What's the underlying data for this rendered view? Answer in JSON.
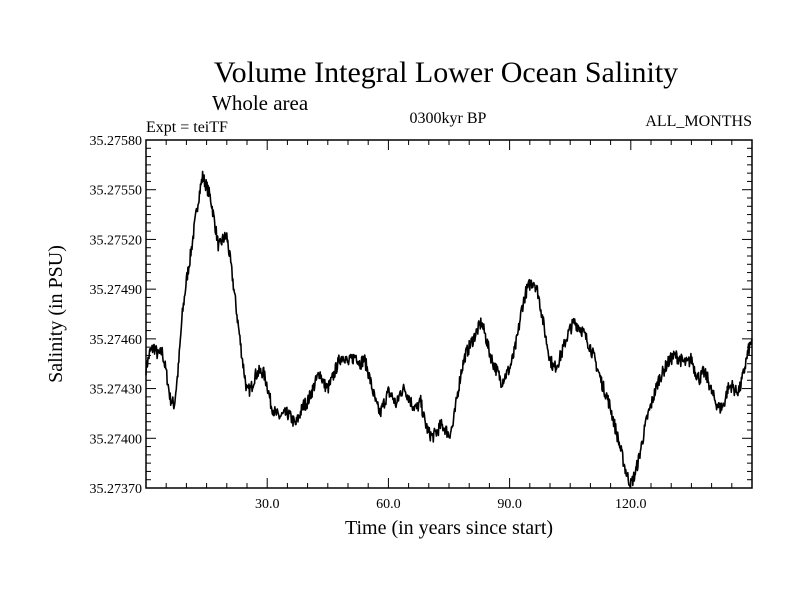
{
  "chart_data": {
    "type": "line",
    "title": "Volume Integral Lower Ocean Salinity",
    "subtitle": "Whole area",
    "experiment": "Expt = teiTF",
    "period": "0300kyr BP",
    "months": "ALL_MONTHS",
    "xlabel": "Time (in years since start)",
    "ylabel": "Salinity (in PSU)",
    "xlim": [
      0,
      150
    ],
    "ylim": [
      35.2737,
      35.2758
    ],
    "xticks": [
      30,
      60,
      90,
      120
    ],
    "xtick_labels": [
      "30.0",
      "60.0",
      "90.0",
      "120.0"
    ],
    "yticks": [
      35.2737,
      35.274,
      35.2743,
      35.2746,
      35.2749,
      35.2752,
      35.2755,
      35.2758
    ],
    "ytick_labels": [
      "35.27370",
      "35.27400",
      "35.27430",
      "35.27460",
      "35.27490",
      "35.27520",
      "35.27550",
      "35.27580"
    ],
    "grid": false,
    "series": [
      {
        "name": "salinity",
        "x": [
          0,
          1,
          2,
          3,
          4,
          5,
          6,
          7,
          8,
          9,
          10,
          11,
          12,
          13,
          14,
          15,
          16,
          17,
          18,
          19,
          20,
          21,
          22,
          23,
          24,
          25,
          26,
          27,
          28,
          29,
          30,
          31,
          32,
          33,
          34,
          35,
          36,
          37,
          38,
          39,
          40,
          41,
          42,
          43,
          44,
          45,
          46,
          47,
          48,
          49,
          50,
          51,
          52,
          53,
          54,
          55,
          56,
          57,
          58,
          59,
          60,
          61,
          62,
          63,
          64,
          65,
          66,
          67,
          68,
          69,
          70,
          71,
          72,
          73,
          74,
          75,
          76,
          77,
          78,
          79,
          80,
          81,
          82,
          83,
          84,
          85,
          86,
          87,
          88,
          89,
          90,
          91,
          92,
          93,
          94,
          95,
          96,
          97,
          98,
          99,
          100,
          101,
          102,
          103,
          104,
          105,
          106,
          107,
          108,
          109,
          110,
          111,
          112,
          113,
          114,
          115,
          116,
          117,
          118,
          119,
          120,
          121,
          122,
          123,
          124,
          125,
          126,
          127,
          128,
          129,
          130,
          131,
          132,
          133,
          134,
          135,
          136,
          137,
          138,
          139,
          140,
          141,
          142,
          143,
          144,
          145,
          146,
          147,
          148,
          149,
          150
        ],
        "values": [
          35.27442,
          35.27452,
          35.27455,
          35.2745,
          35.27452,
          35.2744,
          35.27424,
          35.2742,
          35.27442,
          35.27475,
          35.27495,
          35.2751,
          35.27528,
          35.27545,
          35.27558,
          35.27552,
          35.27545,
          35.2753,
          35.27515,
          35.2752,
          35.27522,
          35.27505,
          35.27485,
          35.27465,
          35.27445,
          35.27428,
          35.2743,
          35.27438,
          35.2744,
          35.2744,
          35.27432,
          35.2742,
          35.27415,
          35.27413,
          35.27414,
          35.27415,
          35.27412,
          35.27408,
          35.27414,
          35.2742,
          35.27422,
          35.27428,
          35.27434,
          35.2744,
          35.27433,
          35.2743,
          35.27435,
          35.27442,
          35.27448,
          35.2745,
          35.27445,
          35.27448,
          35.2745,
          35.27445,
          35.27448,
          35.2744,
          35.2743,
          35.2742,
          35.27415,
          35.27422,
          35.27428,
          35.27425,
          35.2742,
          35.27428,
          35.2743,
          35.27425,
          35.2742,
          35.27418,
          35.27422,
          35.2741,
          35.27403,
          35.27401,
          35.27404,
          35.27408,
          35.27406,
          35.27402,
          35.27408,
          35.27425,
          35.2744,
          35.2745,
          35.27455,
          35.2746,
          35.27465,
          35.2747,
          35.27462,
          35.27452,
          35.27445,
          35.2744,
          35.27434,
          35.27438,
          35.27442,
          35.2745,
          35.27462,
          35.27478,
          35.27488,
          35.27493,
          35.27495,
          35.27488,
          35.27475,
          35.2746,
          35.27448,
          35.27442,
          35.27446,
          35.27452,
          35.2746,
          35.27466,
          35.2747,
          35.27468,
          35.27465,
          35.2746,
          35.27455,
          35.27448,
          35.2744,
          35.27432,
          35.27426,
          35.27418,
          35.27408,
          35.27398,
          35.27388,
          35.27378,
          35.27372,
          35.27378,
          35.27388,
          35.274,
          35.27412,
          35.2742,
          35.27428,
          35.27436,
          35.2744,
          35.27445,
          35.27448,
          35.2745,
          35.27448,
          35.27446,
          35.27445,
          35.27448,
          35.2744,
          35.27436,
          35.2744,
          35.27436,
          35.27428,
          35.27422,
          35.27418,
          35.2742,
          35.2743,
          35.27432,
          35.27428,
          35.2743,
          35.2744,
          35.27452,
          35.2746
        ]
      }
    ]
  }
}
